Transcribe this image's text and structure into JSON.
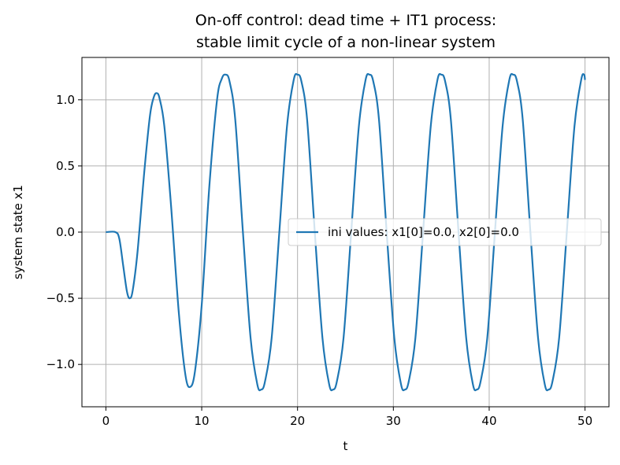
{
  "chart_data": {
    "type": "line",
    "title_lines": [
      "On-off control: dead time + IT1 process:",
      "stable limit cycle of a non-linear system"
    ],
    "xlabel": "t",
    "ylabel": "system state x1",
    "xlim": [
      -2.5,
      52.5
    ],
    "ylim": [
      -1.32,
      1.32
    ],
    "xticks": [
      0,
      10,
      20,
      30,
      40,
      50
    ],
    "xtick_labels": [
      "0",
      "10",
      "20",
      "30",
      "40",
      "50"
    ],
    "yticks": [
      -1.0,
      -0.5,
      0.0,
      0.5,
      1.0
    ],
    "ytick_labels": [
      "−1.0",
      "−0.5",
      "0.0",
      "0.5",
      "1.0"
    ],
    "grid": true,
    "legend_position": "center-right",
    "series": [
      {
        "name": "ini values: x1[0]=0.0, x2[0]=0.0",
        "color": "#1f77b4",
        "points": [
          [
            0.0,
            0.0
          ],
          [
            1.0,
            0.0
          ],
          [
            1.4,
            -0.05
          ],
          [
            1.8,
            -0.25
          ],
          [
            2.2,
            -0.45
          ],
          [
            2.5,
            -0.5
          ],
          [
            2.8,
            -0.44
          ],
          [
            3.3,
            -0.15
          ],
          [
            4.0,
            0.45
          ],
          [
            4.6,
            0.88
          ],
          [
            5.0,
            1.02
          ],
          [
            5.3,
            1.05
          ],
          [
            5.6,
            1.01
          ],
          [
            6.1,
            0.8
          ],
          [
            6.8,
            0.2
          ],
          [
            7.6,
            -0.6
          ],
          [
            8.3,
            -1.08
          ],
          [
            8.8,
            -1.17
          ],
          [
            9.3,
            -1.05
          ],
          [
            10.0,
            -0.55
          ],
          [
            10.8,
            0.35
          ],
          [
            11.6,
            1.0
          ],
          [
            12.1,
            1.16
          ],
          [
            12.5,
            1.19
          ],
          [
            12.9,
            1.14
          ],
          [
            13.5,
            0.85
          ],
          [
            14.3,
            0.0
          ],
          [
            15.1,
            -0.8
          ],
          [
            15.8,
            -1.15
          ],
          [
            16.2,
            -1.19
          ],
          [
            16.6,
            -1.13
          ],
          [
            17.3,
            -0.8
          ],
          [
            18.1,
            0.0
          ],
          [
            18.9,
            0.8
          ],
          [
            19.6,
            1.15
          ],
          [
            20.0,
            1.19
          ],
          [
            20.4,
            1.14
          ],
          [
            21.0,
            0.85
          ],
          [
            21.8,
            0.0
          ],
          [
            22.6,
            -0.8
          ],
          [
            23.3,
            -1.15
          ],
          [
            23.7,
            -1.19
          ],
          [
            24.1,
            -1.13
          ],
          [
            24.8,
            -0.8
          ],
          [
            25.6,
            0.0
          ],
          [
            26.4,
            0.8
          ],
          [
            27.1,
            1.15
          ],
          [
            27.5,
            1.19
          ],
          [
            27.9,
            1.14
          ],
          [
            28.5,
            0.85
          ],
          [
            29.3,
            0.0
          ],
          [
            30.1,
            -0.8
          ],
          [
            30.8,
            -1.15
          ],
          [
            31.2,
            -1.19
          ],
          [
            31.6,
            -1.13
          ],
          [
            32.3,
            -0.8
          ],
          [
            33.1,
            0.0
          ],
          [
            33.9,
            0.8
          ],
          [
            34.6,
            1.15
          ],
          [
            35.0,
            1.19
          ],
          [
            35.4,
            1.14
          ],
          [
            36.0,
            0.85
          ],
          [
            36.8,
            0.0
          ],
          [
            37.6,
            -0.8
          ],
          [
            38.3,
            -1.15
          ],
          [
            38.7,
            -1.19
          ],
          [
            39.1,
            -1.13
          ],
          [
            39.8,
            -0.8
          ],
          [
            40.6,
            0.0
          ],
          [
            41.4,
            0.8
          ],
          [
            42.1,
            1.15
          ],
          [
            42.5,
            1.19
          ],
          [
            42.9,
            1.14
          ],
          [
            43.5,
            0.85
          ],
          [
            44.3,
            0.0
          ],
          [
            45.1,
            -0.8
          ],
          [
            45.8,
            -1.15
          ],
          [
            46.2,
            -1.19
          ],
          [
            46.6,
            -1.13
          ],
          [
            47.3,
            -0.8
          ],
          [
            48.1,
            0.0
          ],
          [
            48.9,
            0.8
          ],
          [
            49.6,
            1.15
          ],
          [
            49.9,
            1.19
          ],
          [
            50.0,
            1.15
          ]
        ]
      }
    ]
  }
}
